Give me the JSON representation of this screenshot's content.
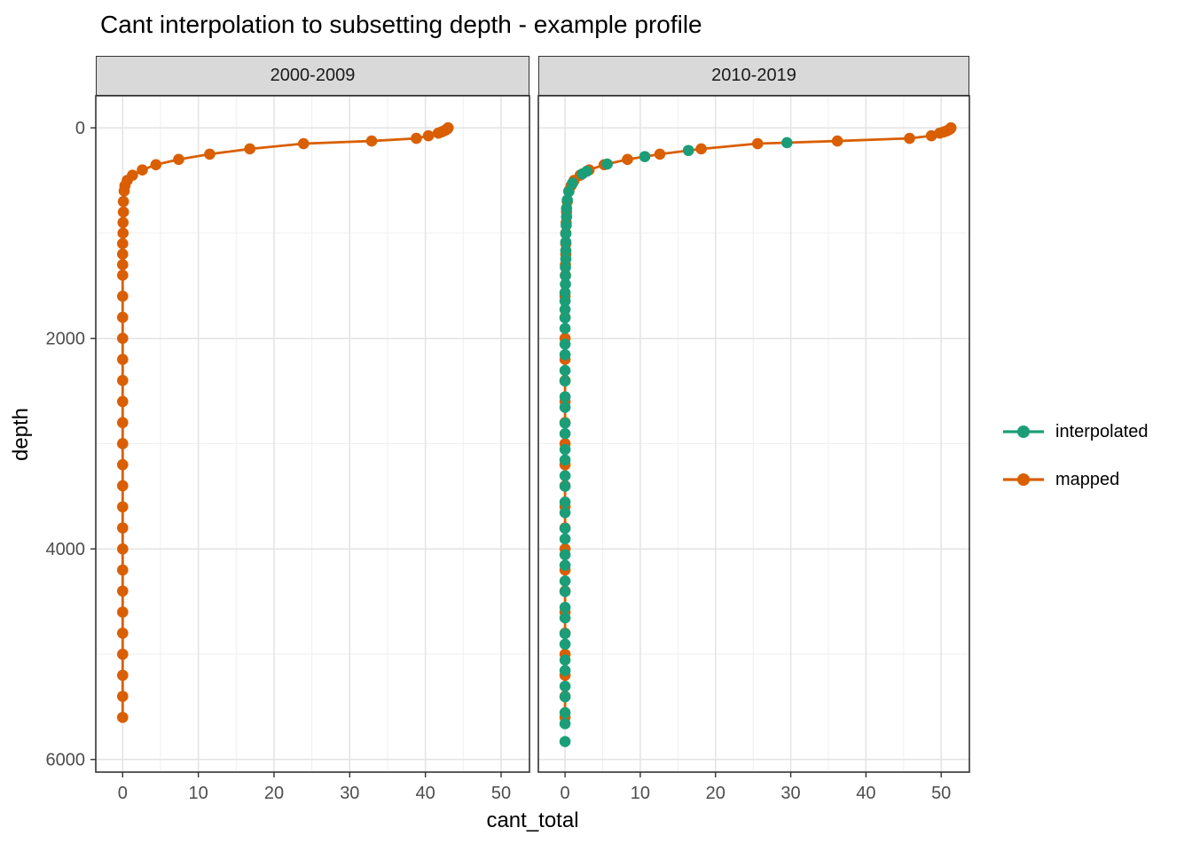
{
  "chart_data": {
    "type": "scatter",
    "title": "Cant interpolation to subsetting depth - example profile",
    "xlabel": "cant_total",
    "ylabel": "depth",
    "x_ticks": [
      0,
      10,
      20,
      30,
      40,
      50
    ],
    "x_minor_ticks": [
      5,
      15,
      25,
      35,
      45
    ],
    "y_ticks": [
      0,
      2000,
      4000,
      6000
    ],
    "y_minor_ticks": [
      1000,
      3000,
      5000
    ],
    "xlim": [
      -3.55,
      53.75
    ],
    "ylim": [
      -305,
      6120
    ],
    "y_reversed": true,
    "grid": true,
    "legend_position": "right",
    "legend": [
      {
        "label": "interpolated",
        "color": "#1B9E77"
      },
      {
        "label": "mapped",
        "color": "#D95F02"
      }
    ],
    "facets": [
      {
        "label": "2000-2009",
        "series": [
          {
            "name": "mapped",
            "color": "#D95F02",
            "line": true,
            "points_format": [
              "depth",
              "cant_total"
            ],
            "points": [
              [
                0,
                43.0
              ],
              [
                10,
                42.9
              ],
              [
                20,
                42.7
              ],
              [
                30,
                42.4
              ],
              [
                40,
                42.1
              ],
              [
                50,
                41.7
              ],
              [
                75,
                40.4
              ],
              [
                100,
                38.8
              ],
              [
                125,
                32.9
              ],
              [
                150,
                23.9
              ],
              [
                200,
                16.8
              ],
              [
                250,
                11.5
              ],
              [
                300,
                7.4
              ],
              [
                350,
                4.4
              ],
              [
                400,
                2.6
              ],
              [
                450,
                1.3
              ],
              [
                500,
                0.6
              ],
              [
                550,
                0.3
              ],
              [
                600,
                0.2
              ],
              [
                700,
                0.1
              ],
              [
                800,
                0.1
              ],
              [
                900,
                0.05
              ],
              [
                1000,
                0.05
              ],
              [
                1100,
                0
              ],
              [
                1200,
                0
              ],
              [
                1300,
                0
              ],
              [
                1400,
                0
              ],
              [
                1600,
                0
              ],
              [
                1800,
                0
              ],
              [
                2000,
                0
              ],
              [
                2200,
                0
              ],
              [
                2400,
                0
              ],
              [
                2600,
                0
              ],
              [
                2800,
                0
              ],
              [
                3000,
                0
              ],
              [
                3200,
                0
              ],
              [
                3400,
                0
              ],
              [
                3600,
                0
              ],
              [
                3800,
                0
              ],
              [
                4000,
                0
              ],
              [
                4200,
                0
              ],
              [
                4400,
                0
              ],
              [
                4600,
                0
              ],
              [
                4800,
                0
              ],
              [
                5000,
                0
              ],
              [
                5200,
                0
              ],
              [
                5400,
                0
              ],
              [
                5600,
                0
              ]
            ]
          }
        ]
      },
      {
        "label": "2010-2019",
        "series": [
          {
            "name": "mapped",
            "color": "#D95F02",
            "line": true,
            "points_format": [
              "depth",
              "cant_total"
            ],
            "points": [
              [
                0,
                51.3
              ],
              [
                10,
                51.2
              ],
              [
                20,
                51.0
              ],
              [
                30,
                50.7
              ],
              [
                40,
                50.3
              ],
              [
                50,
                49.8
              ],
              [
                75,
                48.7
              ],
              [
                100,
                45.8
              ],
              [
                125,
                36.2
              ],
              [
                150,
                25.6
              ],
              [
                200,
                18.1
              ],
              [
                250,
                12.6
              ],
              [
                300,
                8.3
              ],
              [
                350,
                5.2
              ],
              [
                400,
                3.2
              ],
              [
                450,
                2.0
              ],
              [
                500,
                1.2
              ],
              [
                550,
                0.8
              ],
              [
                600,
                0.5
              ],
              [
                700,
                0.3
              ],
              [
                800,
                0.2
              ],
              [
                900,
                0.15
              ],
              [
                1000,
                0.1
              ],
              [
                1100,
                0.1
              ],
              [
                1200,
                0.1
              ],
              [
                1300,
                0.05
              ],
              [
                1400,
                0.05
              ],
              [
                1600,
                0
              ],
              [
                1800,
                0
              ],
              [
                2000,
                0
              ],
              [
                2200,
                0
              ],
              [
                2400,
                0
              ],
              [
                2600,
                0
              ],
              [
                2800,
                0
              ],
              [
                3000,
                0
              ],
              [
                3200,
                0
              ],
              [
                3400,
                0
              ],
              [
                3600,
                0
              ],
              [
                3800,
                0
              ],
              [
                4000,
                0
              ],
              [
                4200,
                0
              ],
              [
                4400,
                0
              ],
              [
                4600,
                0
              ],
              [
                4800,
                0
              ],
              [
                5000,
                0
              ],
              [
                5200,
                0
              ],
              [
                5400,
                0
              ],
              [
                5600,
                0
              ]
            ]
          },
          {
            "name": "interpolated",
            "color": "#1B9E77",
            "line": false,
            "points_format": [
              "depth",
              "cant_total"
            ],
            "points": [
              [
                141,
                29.5
              ],
              [
                215,
                16.4
              ],
              [
                273,
                10.6
              ],
              [
                344,
                5.6
              ],
              [
                412,
                2.9
              ],
              [
                437,
                2.3
              ],
              [
                525,
                1.0
              ],
              [
                605,
                0.5
              ],
              [
                685,
                0.3
              ],
              [
                765,
                0.2
              ],
              [
                845,
                0.2
              ],
              [
                925,
                0.15
              ],
              [
                1005,
                0.1
              ],
              [
                1085,
                0.1
              ],
              [
                1165,
                0.1
              ],
              [
                1245,
                0.1
              ],
              [
                1325,
                0.05
              ],
              [
                1405,
                0.05
              ],
              [
                1485,
                0.05
              ],
              [
                1565,
                0
              ],
              [
                1645,
                0
              ],
              [
                1725,
                0
              ],
              [
                1805,
                0
              ],
              [
                1905,
                0
              ],
              [
                2055,
                0
              ],
              [
                2155,
                0
              ],
              [
                2305,
                0
              ],
              [
                2405,
                0
              ],
              [
                2555,
                0
              ],
              [
                2655,
                0
              ],
              [
                2805,
                0
              ],
              [
                2905,
                0
              ],
              [
                3055,
                0
              ],
              [
                3155,
                0
              ],
              [
                3305,
                0
              ],
              [
                3405,
                0
              ],
              [
                3555,
                0
              ],
              [
                3655,
                0
              ],
              [
                3805,
                0
              ],
              [
                3905,
                0
              ],
              [
                4055,
                0
              ],
              [
                4155,
                0
              ],
              [
                4305,
                0
              ],
              [
                4405,
                0
              ],
              [
                4555,
                0
              ],
              [
                4655,
                0
              ],
              [
                4805,
                0
              ],
              [
                4905,
                0
              ],
              [
                5055,
                0
              ],
              [
                5155,
                0
              ],
              [
                5305,
                0
              ],
              [
                5405,
                0
              ],
              [
                5555,
                0
              ],
              [
                5660,
                0
              ],
              [
                5830,
                0
              ]
            ]
          }
        ]
      }
    ]
  }
}
